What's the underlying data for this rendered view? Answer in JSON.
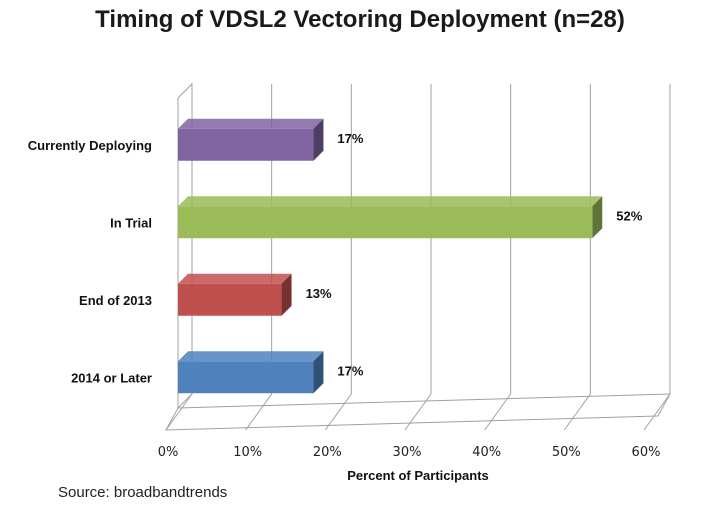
{
  "chart_data": {
    "type": "bar",
    "orientation": "horizontal",
    "title": "Timing of VDSL2 Vectoring Deployment (n=28)",
    "xlabel": "Percent of Participants",
    "ylabel": "",
    "categories": [
      "Currently Deploying",
      "In Trial",
      "End of 2013",
      "2014 or Later"
    ],
    "values": [
      17,
      52,
      13,
      17
    ],
    "data_labels": [
      "17%",
      "52%",
      "13%",
      "17%"
    ],
    "colors": [
      "#8064A2",
      "#9BBB59",
      "#C0504D",
      "#4F81BD"
    ],
    "xlim": [
      0,
      60
    ],
    "xticks": [
      0,
      10,
      20,
      30,
      40,
      50,
      60
    ],
    "xtick_labels": [
      "0%",
      "10%",
      "20%",
      "30%",
      "40%",
      "50%",
      "60%"
    ],
    "grid": true,
    "style": "3d"
  },
  "source": "Source: broadbandtrends"
}
